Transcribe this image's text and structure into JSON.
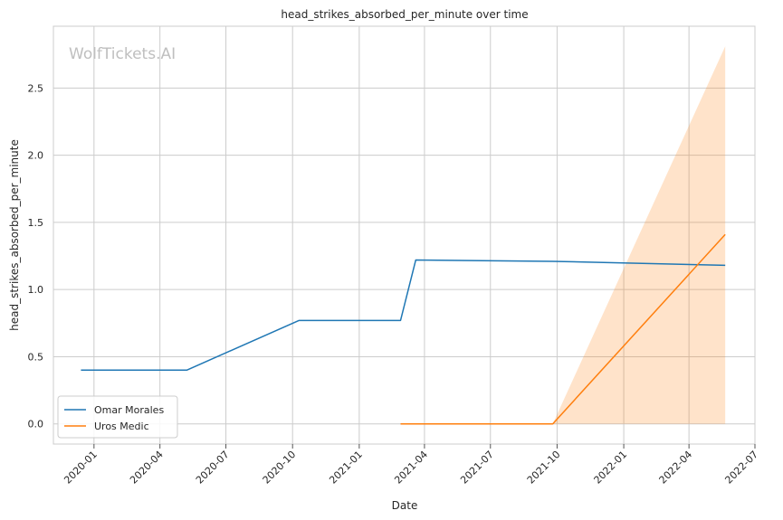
{
  "watermark": "WolfTickets.AI",
  "chart_data": {
    "type": "line",
    "title": "head_strikes_absorbed_per_minute over time",
    "xlabel": "Date",
    "ylabel": "head_strikes_absorbed_per_minute",
    "grid": true,
    "legend_position": "lower-left",
    "x_ticks": [
      "2020-01",
      "2020-04",
      "2020-07",
      "2020-10",
      "2021-01",
      "2021-04",
      "2021-07",
      "2021-10",
      "2022-01",
      "2022-04",
      "2022-07"
    ],
    "y_ticks": [
      "0.0",
      "0.5",
      "1.0",
      "1.5",
      "2.0",
      "2.5"
    ],
    "xlim": [
      "2019-11-06",
      "2022-07-01"
    ],
    "ylim": [
      -0.15,
      2.96
    ],
    "series": [
      {
        "name": "Omar Morales",
        "color": "#1f77b4",
        "x": [
          "2019-12-14",
          "2020-05-08",
          "2020-10-10",
          "2021-02-27",
          "2021-03-20",
          "2021-09-25",
          "2022-05-21"
        ],
        "y": [
          0.4,
          0.4,
          0.77,
          0.77,
          1.22,
          1.21,
          1.18
        ]
      },
      {
        "name": "Uros Medic",
        "color": "#ff7f0e",
        "x": [
          "2021-02-27",
          "2021-09-25",
          "2022-05-21"
        ],
        "y": [
          0.0,
          0.0,
          1.41
        ],
        "band_lower": [
          0.0,
          0.0,
          0.0
        ],
        "band_upper": [
          0.0,
          0.0,
          2.81
        ],
        "band_color": "#ff7f0e"
      }
    ]
  }
}
